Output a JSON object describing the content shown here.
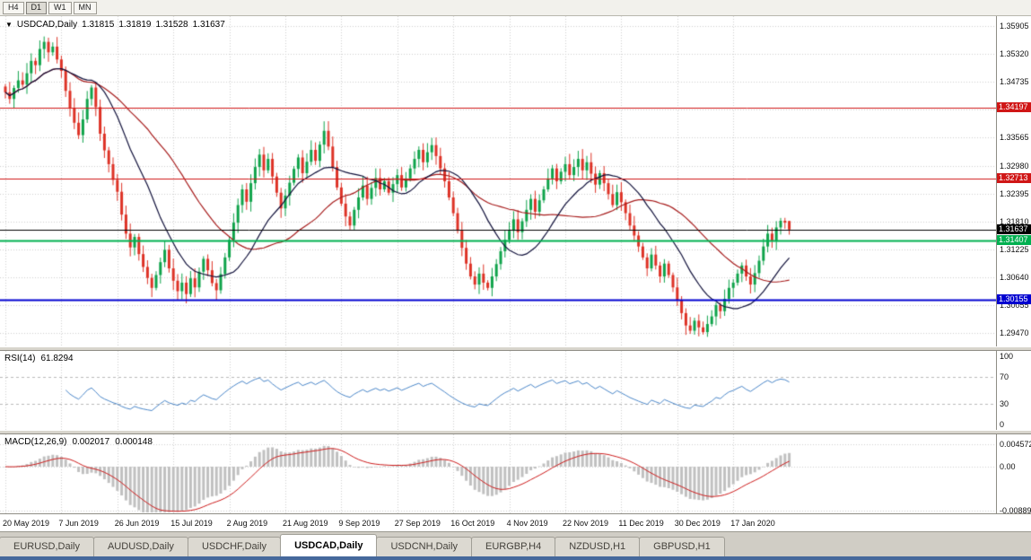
{
  "toolbar": {
    "buttons": [
      {
        "label": "H4",
        "active": false
      },
      {
        "label": "D1",
        "active": true
      },
      {
        "label": "W1",
        "active": false
      },
      {
        "label": "MN",
        "active": false
      }
    ]
  },
  "icons": {
    "collapse_arrow": "▼"
  },
  "chart": {
    "symbol": "USDCAD,Daily",
    "open": "1.31815",
    "high": "1.31819",
    "low": "1.31528",
    "close": "1.31637"
  },
  "colors": {
    "up": "#0fa34a",
    "down": "#dd3226",
    "grid": "#cfcfcf",
    "ma_fast": "#10103a",
    "ma_slow": "#a61b1b",
    "rsi_line": "#4a86c8",
    "rsi_level": "#b8b8b8",
    "macd_hist": "#c0c0c0",
    "macd_signal": "#cc1a1a",
    "current_price_line": "#000000"
  },
  "levels": [
    {
      "name": "resistance-upper",
      "label": "1.34197",
      "value": 1.34197,
      "color": "#d01616",
      "width": 1
    },
    {
      "name": "resistance-lower",
      "label": "1.32713",
      "value": 1.32713,
      "color": "#d01616",
      "width": 1
    },
    {
      "name": "current-price",
      "label": "1.31637",
      "value": 1.31637,
      "color": "#000000",
      "width": 1
    },
    {
      "name": "support-green",
      "label": "1.31407",
      "value": 1.31407,
      "color": "#00b050",
      "width": 2
    },
    {
      "name": "support-blue",
      "label": "1.30155",
      "value": 1.30155,
      "color": "#0000d0",
      "width": 2
    }
  ],
  "rsi": {
    "name": "RSI(14)",
    "value": "61.8294",
    "axis": [
      100,
      70,
      30,
      0
    ],
    "upper": 70,
    "lower": 30
  },
  "macd": {
    "name": "MACD(12,26,9)",
    "main_value": "0.002017",
    "signal_value": "0.000148",
    "axis": [
      {
        "label": "0.004572",
        "value": 0.004572
      },
      {
        "label": "0.00",
        "value": 0.0
      },
      {
        "label": "-0.00889",
        "value": -0.00889
      }
    ]
  },
  "tabs": [
    {
      "label": "EURUSD,Daily",
      "active": false
    },
    {
      "label": "AUDUSD,Daily",
      "active": false
    },
    {
      "label": "USDCHF,Daily",
      "active": false
    },
    {
      "label": "USDCAD,Daily",
      "active": true
    },
    {
      "label": "USDCNH,Daily",
      "active": false
    },
    {
      "label": "EURGBP,H4",
      "active": false
    },
    {
      "label": "NZDUSD,H1",
      "active": false
    },
    {
      "label": "GBPUSD,H1",
      "active": false
    }
  ],
  "chart_data": {
    "type": "candlestick",
    "title": "USDCAD,Daily",
    "y_range": [
      1.2918,
      1.3612
    ],
    "y_ticks": [
      1.35905,
      1.3532,
      1.34735,
      1.3415,
      1.33565,
      1.3298,
      1.32395,
      1.3181,
      1.31225,
      1.3064,
      1.30055,
      1.2947
    ],
    "x_labels": [
      "20 May 2019",
      "7 Jun 2019",
      "26 Jun 2019",
      "15 Jul 2019",
      "2 Aug 2019",
      "21 Aug 2019",
      "9 Sep 2019",
      "27 Sep 2019",
      "16 Oct 2019",
      "4 Nov 2019",
      "22 Nov 2019",
      "11 Dec 2019",
      "30 Dec 2019",
      "17 Jan 2020"
    ],
    "label_every": 13,
    "last_bar": {
      "open": 1.31815,
      "high": 1.31819,
      "low": 1.31528,
      "close": 1.31637
    },
    "closes": [
      1.3452,
      1.3438,
      1.3461,
      1.3477,
      1.3468,
      1.3492,
      1.3518,
      1.3509,
      1.3543,
      1.3558,
      1.3536,
      1.3548,
      1.3521,
      1.3497,
      1.3455,
      1.3418,
      1.3388,
      1.3362,
      1.3395,
      1.3438,
      1.3462,
      1.3421,
      1.3365,
      1.333,
      1.3301,
      1.3268,
      1.3243,
      1.3195,
      1.3155,
      1.3126,
      1.3148,
      1.3112,
      1.3085,
      1.3062,
      1.3041,
      1.3068,
      1.3095,
      1.3121,
      1.3082,
      1.3056,
      1.3034,
      1.3052,
      1.3028,
      1.3061,
      1.3042,
      1.3075,
      1.3102,
      1.3078,
      1.3051,
      1.3036,
      1.307,
      1.3105,
      1.3142,
      1.3178,
      1.3215,
      1.3248,
      1.3222,
      1.3261,
      1.3295,
      1.3321,
      1.3288,
      1.3312,
      1.3275,
      1.3241,
      1.3208,
      1.3235,
      1.3262,
      1.3291,
      1.3315,
      1.3282,
      1.3306,
      1.3331,
      1.3308,
      1.3342,
      1.3371,
      1.3338,
      1.3295,
      1.3252,
      1.3218,
      1.3191,
      1.3172,
      1.3205,
      1.3231,
      1.3256,
      1.3228,
      1.3251,
      1.3272,
      1.3248,
      1.3265,
      1.3241,
      1.3259,
      1.3278,
      1.3252,
      1.3271,
      1.3292,
      1.3312,
      1.3331,
      1.3305,
      1.3326,
      1.3341,
      1.3318,
      1.3292,
      1.3265,
      1.3231,
      1.3198,
      1.3161,
      1.3125,
      1.3092,
      1.3065,
      1.3048,
      1.3071,
      1.3052,
      1.3041,
      1.3065,
      1.3091,
      1.3118,
      1.3142,
      1.3161,
      1.3185,
      1.3158,
      1.3181,
      1.3205,
      1.3228,
      1.3201,
      1.3225,
      1.3248,
      1.3271,
      1.3292,
      1.3265,
      1.3285,
      1.3301,
      1.3278,
      1.3295,
      1.3312,
      1.3288,
      1.3305,
      1.3281,
      1.3258,
      1.3282,
      1.3261,
      1.3238,
      1.3215,
      1.3242,
      1.3221,
      1.3198,
      1.3172,
      1.3151,
      1.3128,
      1.3105,
      1.3082,
      1.3111,
      1.3088,
      1.3065,
      1.3092,
      1.3068,
      1.3042,
      1.3015,
      1.2988,
      1.2962,
      1.2951,
      1.2972,
      1.2958,
      1.2948,
      1.2965,
      1.2981,
      1.3005,
      1.2992,
      1.3018,
      1.3041,
      1.3052,
      1.3071,
      1.3088,
      1.3065,
      1.3048,
      1.3072,
      1.3098,
      1.3128,
      1.3155,
      1.3139,
      1.3168,
      1.3182,
      1.3178,
      1.31637
    ],
    "overlays": [
      {
        "name": "ma-fast",
        "type": "sma",
        "period": 16
      },
      {
        "name": "ma-slow",
        "type": "sma",
        "period": 34
      }
    ],
    "indicators": [
      {
        "name": "RSI",
        "period": 14,
        "current": 61.8294
      },
      {
        "name": "MACD",
        "params": [
          12,
          26,
          9
        ],
        "current_main": 0.002017,
        "current_signal": 0.000148
      }
    ]
  }
}
